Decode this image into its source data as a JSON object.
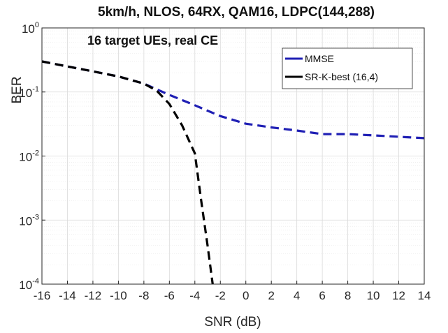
{
  "chart_data": {
    "type": "line",
    "title": "5km/h, NLOS, 64RX, QAM16, LDPC(144,288)",
    "annotation": "16 target UEs, real CE",
    "xlabel": "SNR (dB)",
    "ylabel": "BER",
    "xlim": [
      -16,
      14
    ],
    "ylim": [
      0.0001,
      1
    ],
    "yscale": "log",
    "grid": true,
    "legend_position": "top-right",
    "x_ticks": [
      -16,
      -14,
      -12,
      -10,
      -8,
      -6,
      -4,
      -2,
      0,
      2,
      4,
      6,
      8,
      10,
      12,
      14
    ],
    "y_ticks": [
      {
        "value": 1,
        "base": "10",
        "exp": "0"
      },
      {
        "value": 0.1,
        "base": "10",
        "exp": "-1"
      },
      {
        "value": 0.01,
        "base": "10",
        "exp": "-2"
      },
      {
        "value": 0.001,
        "base": "10",
        "exp": "-3"
      },
      {
        "value": 0.0001,
        "base": "10",
        "exp": "-4"
      }
    ],
    "series": [
      {
        "name": "MMSE",
        "color": "#1f1fb4",
        "dash": "dashed",
        "x": [
          -16,
          -14,
          -12,
          -10,
          -8,
          -6,
          -4,
          -2,
          0,
          2,
          4,
          6,
          8,
          10,
          12,
          14
        ],
        "y": [
          0.3,
          0.25,
          0.21,
          0.175,
          0.135,
          0.09,
          0.062,
          0.042,
          0.032,
          0.028,
          0.025,
          0.022,
          0.022,
          0.021,
          0.02,
          0.019
        ]
      },
      {
        "name": "SR-K-best (16,4)",
        "color": "#000000",
        "dash": "dashed",
        "x": [
          -16,
          -14,
          -12,
          -10,
          -8,
          -7,
          -6,
          -5,
          -4,
          -3.5,
          -3,
          -2.6
        ],
        "y": [
          0.3,
          0.25,
          0.21,
          0.175,
          0.135,
          0.105,
          0.065,
          0.03,
          0.011,
          0.002,
          0.0004,
          0.0001
        ]
      }
    ]
  }
}
